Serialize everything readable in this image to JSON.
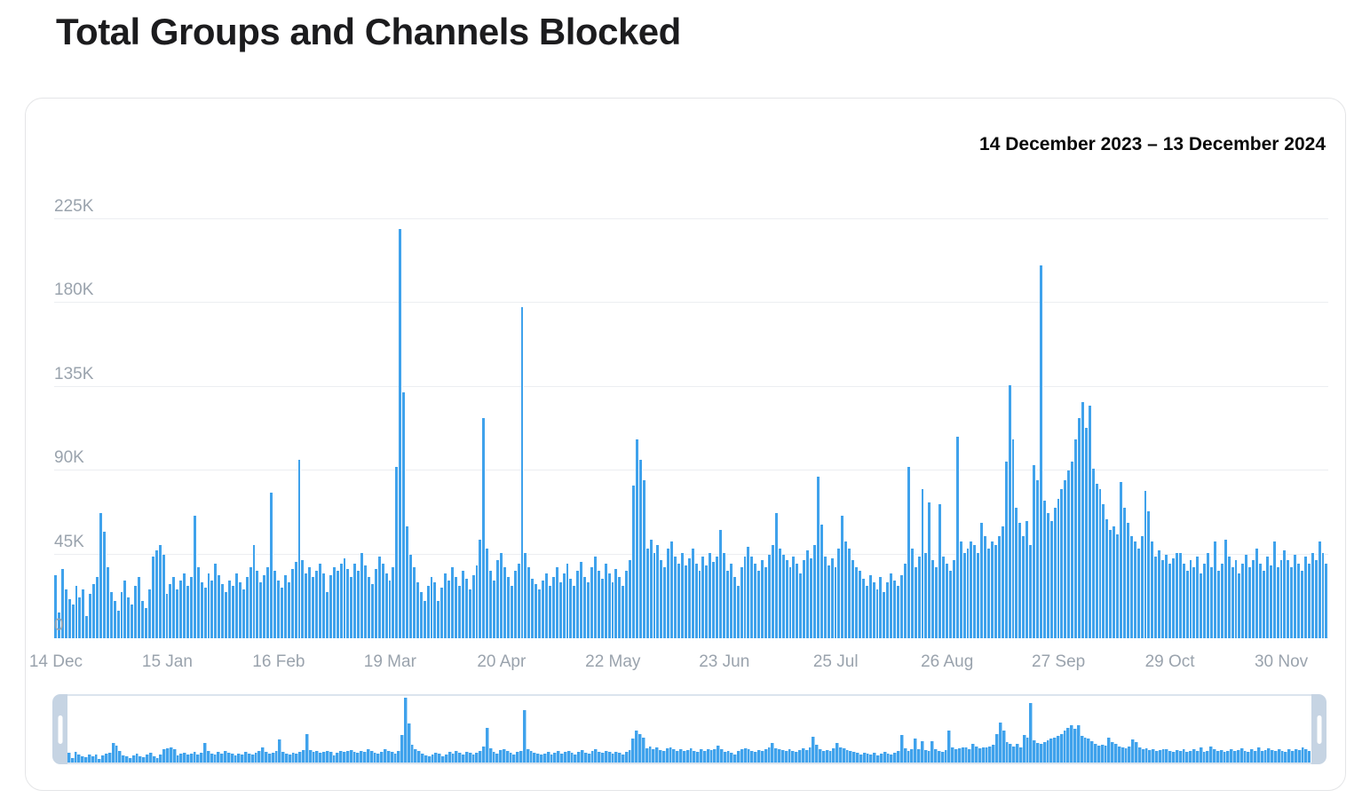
{
  "page": {
    "title": "Total Groups and Channels Blocked"
  },
  "header": {
    "date_range": "14 December 2023 – 13 December 2024"
  },
  "colors": {
    "bar_blue": "#3fa2ec",
    "grid_line": "#eceef1",
    "axis_text": "#9aa3ad",
    "title_text": "#1c1c1e",
    "card_border": "#e4e5e7",
    "minimap_handle": "#c6d4e3",
    "minimap_frame": "#dbe4ee"
  },
  "chart_data": {
    "type": "bar",
    "title": "Total Groups and Channels Blocked",
    "period_label": "14 December 2023 – 13 December 2024",
    "values_unit": "K (thousands, daily totals)",
    "n_days": 366,
    "ylim_k": [
      0,
      225
    ],
    "grid": true,
    "legend": "none",
    "y_ticks": [
      {
        "label": "0",
        "k": 0
      },
      {
        "label": "45K",
        "k": 45
      },
      {
        "label": "90K",
        "k": 90
      },
      {
        "label": "135K",
        "k": 135
      },
      {
        "label": "180K",
        "k": 180
      },
      {
        "label": "225K",
        "k": 225
      }
    ],
    "x_ticks": [
      {
        "label": "14 Dec",
        "day": 0
      },
      {
        "label": "15 Jan",
        "day": 32
      },
      {
        "label": "16 Feb",
        "day": 64
      },
      {
        "label": "19 Mar",
        "day": 96
      },
      {
        "label": "20 Apr",
        "day": 128
      },
      {
        "label": "22 May",
        "day": 160
      },
      {
        "label": "23 Jun",
        "day": 192
      },
      {
        "label": "25 Jul",
        "day": 224
      },
      {
        "label": "26 Aug",
        "day": 256
      },
      {
        "label": "27 Sep",
        "day": 288
      },
      {
        "label": "29 Oct",
        "day": 320
      },
      {
        "label": "30 Nov",
        "day": 352
      }
    ],
    "values_k": [
      34,
      14,
      37,
      26,
      21,
      18,
      28,
      22,
      26,
      12,
      24,
      29,
      33,
      67,
      57,
      38,
      25,
      20,
      15,
      25,
      31,
      22,
      18,
      28,
      33,
      20,
      16,
      26,
      44,
      47,
      50,
      45,
      24,
      29,
      33,
      26,
      31,
      35,
      28,
      33,
      66,
      38,
      30,
      27,
      35,
      31,
      40,
      34,
      29,
      25,
      31,
      28,
      35,
      30,
      26,
      33,
      38,
      50,
      36,
      30,
      34,
      38,
      78,
      36,
      31,
      27,
      34,
      30,
      37,
      41,
      96,
      42,
      35,
      38,
      33,
      36,
      40,
      35,
      25,
      34,
      38,
      36,
      40,
      43,
      37,
      33,
      40,
      36,
      46,
      39,
      33,
      29,
      37,
      44,
      40,
      35,
      31,
      38,
      92,
      220,
      132,
      60,
      45,
      38,
      30,
      25,
      20,
      28,
      33,
      30,
      20,
      27,
      35,
      31,
      38,
      33,
      28,
      36,
      32,
      26,
      34,
      39,
      53,
      118,
      48,
      36,
      31,
      42,
      46,
      38,
      33,
      28,
      36,
      40,
      178,
      46,
      38,
      32,
      29,
      26,
      31,
      35,
      28,
      33,
      38,
      30,
      35,
      40,
      32,
      28,
      36,
      41,
      33,
      30,
      38,
      44,
      36,
      32,
      40,
      35,
      30,
      37,
      33,
      28,
      36,
      42,
      82,
      107,
      96,
      85,
      48,
      53,
      46,
      50,
      42,
      38,
      48,
      52,
      44,
      40,
      46,
      39,
      43,
      48,
      40,
      36,
      44,
      39,
      46,
      41,
      44,
      58,
      46,
      36,
      40,
      33,
      28,
      38,
      44,
      49,
      44,
      40,
      36,
      42,
      38,
      45,
      50,
      67,
      48,
      45,
      42,
      38,
      44,
      40,
      35,
      42,
      47,
      43,
      50,
      87,
      61,
      44,
      39,
      43,
      38,
      48,
      66,
      52,
      48,
      42,
      38,
      36,
      32,
      28,
      34,
      30,
      26,
      33,
      25,
      30,
      35,
      31,
      28,
      34,
      40,
      92,
      48,
      38,
      44,
      80,
      46,
      73,
      42,
      38,
      72,
      44,
      40,
      36,
      42,
      108,
      52,
      46,
      48,
      52,
      50,
      46,
      62,
      55,
      48,
      52,
      50,
      55,
      60,
      95,
      136,
      107,
      70,
      62,
      55,
      63,
      50,
      93,
      85,
      200,
      74,
      67,
      63,
      70,
      75,
      80,
      85,
      90,
      95,
      107,
      118,
      127,
      113,
      125,
      91,
      83,
      80,
      72,
      64,
      58,
      60,
      56,
      84,
      70,
      62,
      55,
      52,
      48,
      55,
      79,
      68,
      52,
      44,
      47,
      42,
      45,
      40,
      43,
      46,
      46,
      40,
      36,
      42,
      38,
      44,
      35,
      40,
      46,
      38,
      52,
      36,
      40,
      53,
      44,
      38,
      42,
      35,
      40,
      45,
      38,
      42,
      48,
      40,
      36,
      44,
      39,
      52,
      38,
      42,
      47,
      42,
      38,
      45,
      40,
      36,
      44,
      40,
      46,
      42,
      52,
      46,
      40
    ]
  }
}
